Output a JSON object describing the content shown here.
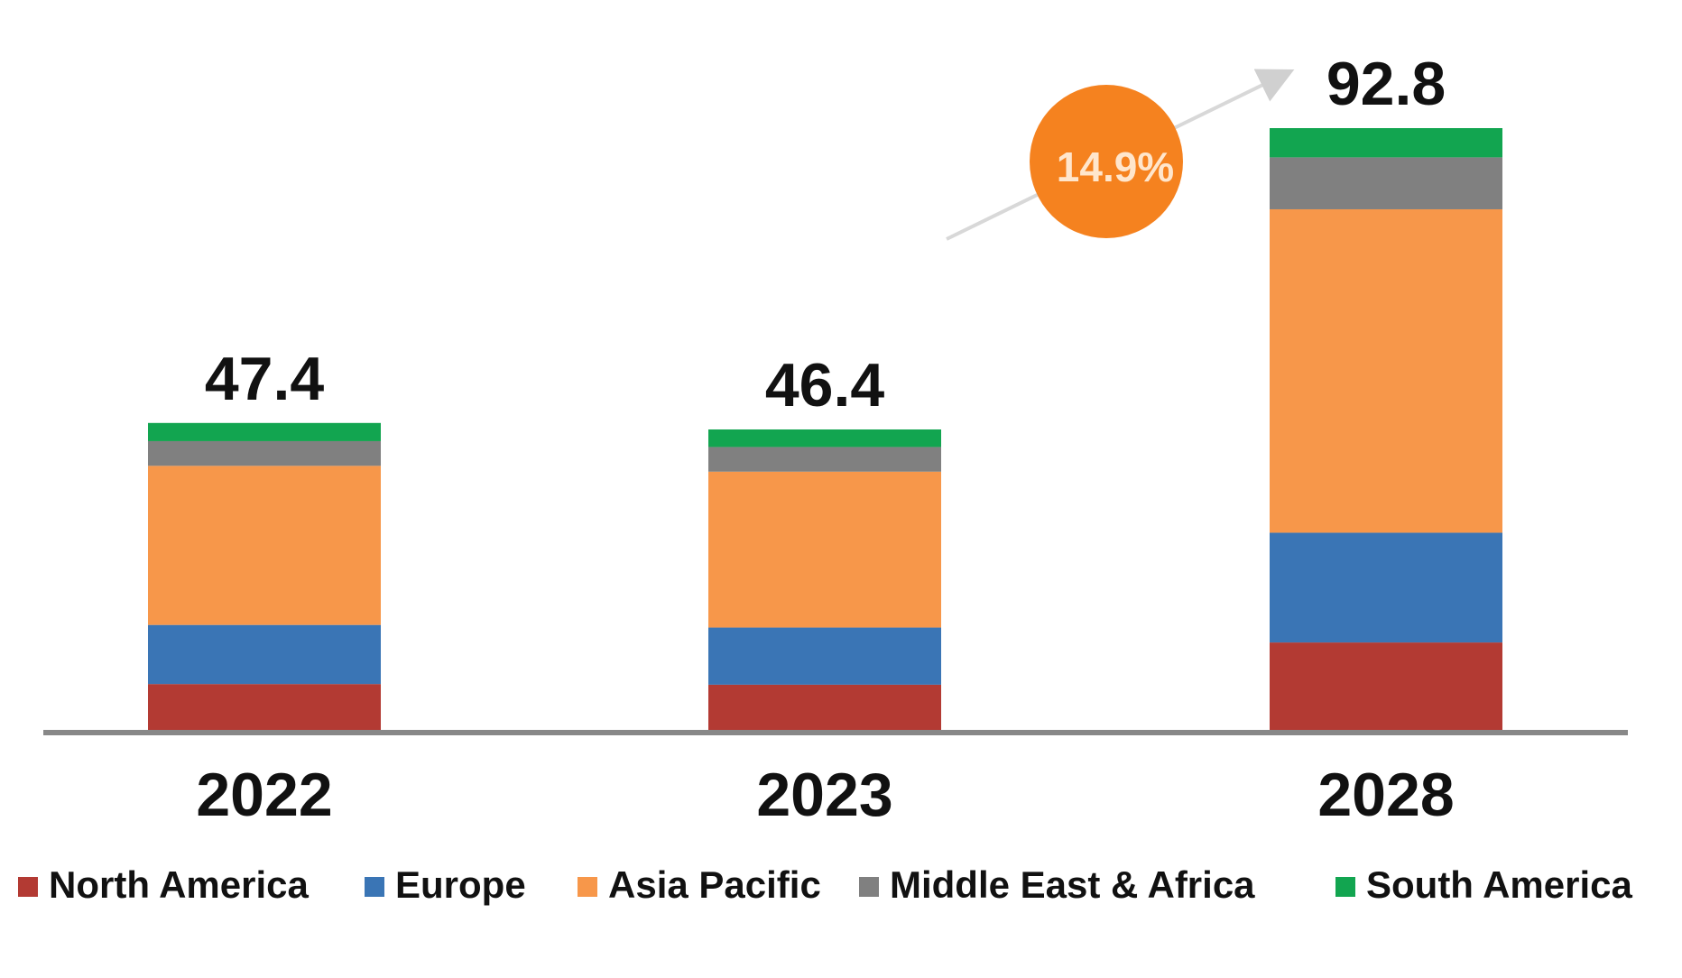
{
  "chart_data": {
    "type": "stacked_bar",
    "categories": [
      "2022",
      "2023",
      "2028"
    ],
    "totals": [
      47.4,
      46.4,
      92.8
    ],
    "series": [
      {
        "name": "North America",
        "color": "#b33a33",
        "values": [
          7.2,
          7.1,
          13.6
        ]
      },
      {
        "name": "Europe",
        "color": "#3a75b5",
        "values": [
          9.1,
          8.8,
          16.9
        ]
      },
      {
        "name": "Asia Pacific",
        "color": "#f7974a",
        "values": [
          24.5,
          24.0,
          49.8
        ]
      },
      {
        "name": "Middle East & Africa",
        "color": "#808080",
        "values": [
          3.8,
          3.8,
          8.0
        ]
      },
      {
        "name": "South America",
        "color": "#12a550",
        "values": [
          2.8,
          2.7,
          4.5
        ]
      }
    ],
    "annotation": "14.9%",
    "annotation_color": "#f5821f"
  }
}
